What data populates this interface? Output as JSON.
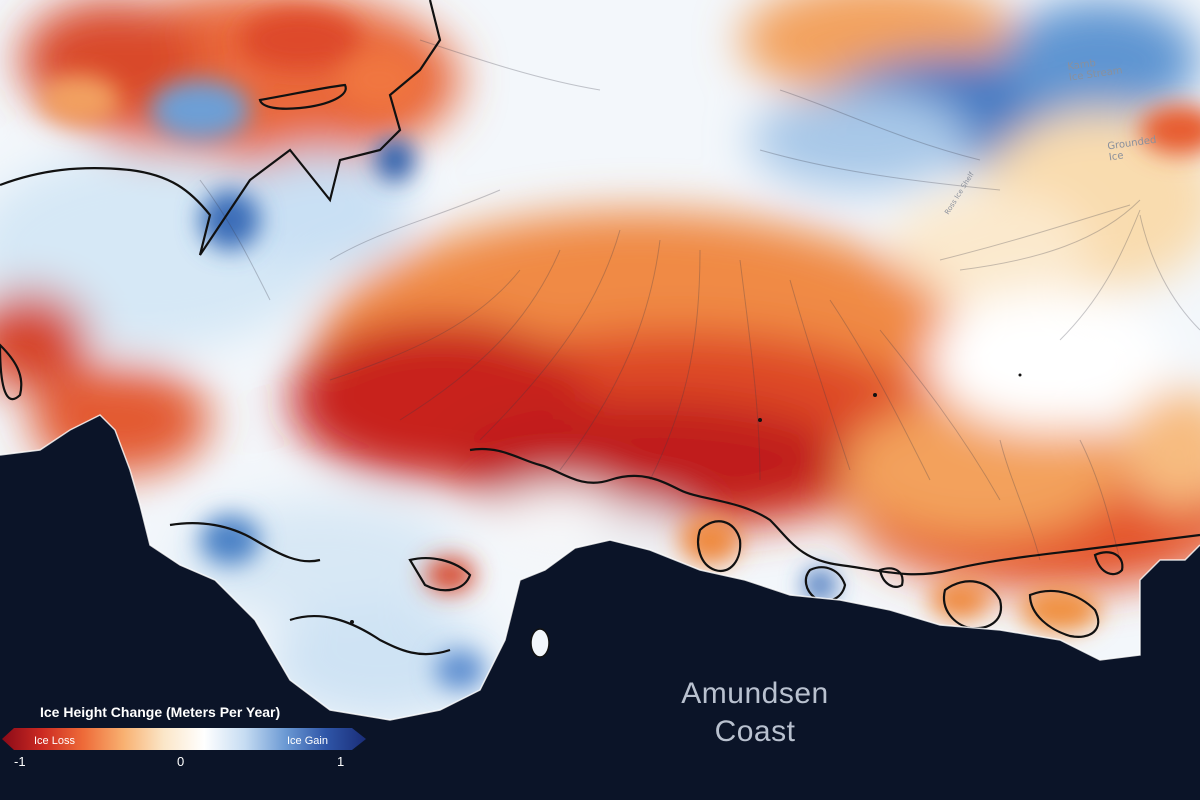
{
  "map": {
    "colors": {
      "ocean": "#0b1428",
      "strong_loss": "#b3141e",
      "moderate_loss": "#e4522a",
      "mild_loss": "#f29a55",
      "slight_loss": "#f8cf9a",
      "no_change": "#f6f9fc",
      "slight_gain": "#d4e6f5",
      "gain": "#7fb1dc",
      "strong_gain": "#2a63b0",
      "grounding_line": "#111111"
    }
  },
  "labels": {
    "ice_stream": "Kamb\nIce Stream",
    "grounded_ice": "Grounded\nIce",
    "ice_shelf": "Ross Ice Shelf",
    "ocean": "Amundsen\nCoast"
  },
  "legend": {
    "title": "Ice Height Change (Meters Per Year)",
    "loss_label": "Ice Loss",
    "gain_label": "Ice Gain",
    "ticks": [
      "-1",
      "0",
      "1"
    ],
    "scale_min": -1,
    "scale_max": 1,
    "colors": [
      "#8a0a18",
      "#cc2a22",
      "#ee6a38",
      "#f8b070",
      "#fbe6c8",
      "#ffffff",
      "#c6dcf2",
      "#6c9ad4",
      "#2f56a8",
      "#1a2d78"
    ]
  }
}
